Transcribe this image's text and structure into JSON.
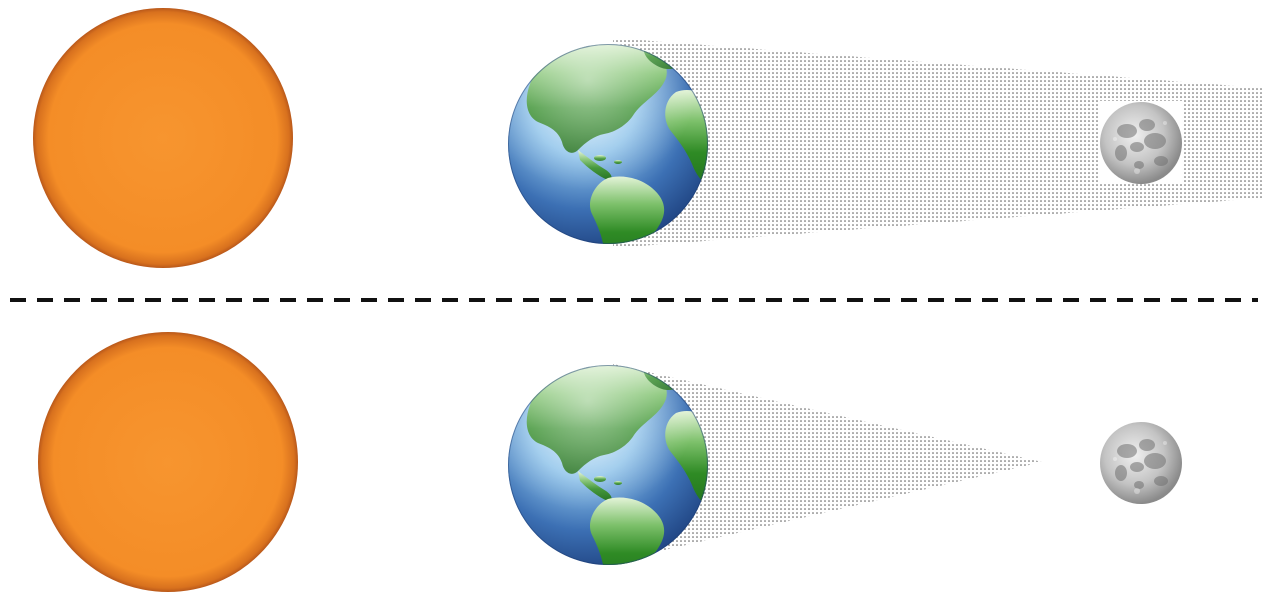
{
  "colors": {
    "background": "#ffffff",
    "sun_fill": "#f6922c",
    "sun_edge": "#c4601a",
    "earth_ocean": "#2f5fa3",
    "earth_ocean_light": "#bfe3fb",
    "earth_land": "#2e8a24",
    "earth_land_light": "#d6efc8",
    "moon_light": "#e6e6e6",
    "moon_dark": "#7d7d7d",
    "shadow_dots": "#555555",
    "divider": "#111111"
  },
  "icons": {
    "sun": "sun-icon",
    "earth": "earth-globe-icon",
    "moon": "moon-icon"
  },
  "panels": [
    {
      "name": "top-panel",
      "shadow_type": "umbra-extends-past-moon",
      "moon_in_shadow": true
    },
    {
      "name": "bottom-panel",
      "shadow_type": "umbra-ends-before-moon",
      "moon_in_shadow": false
    }
  ],
  "divider_style": "dashed"
}
